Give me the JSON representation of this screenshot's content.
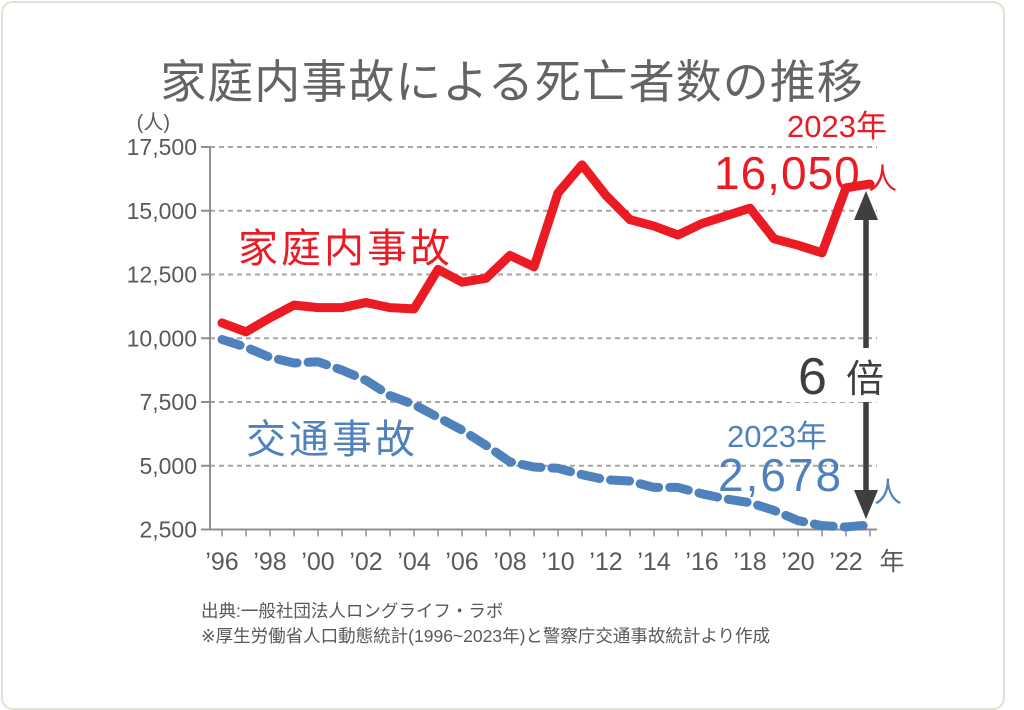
{
  "title": "家庭内事故による死亡者数の推移",
  "source": {
    "line1": "出典:一般社団法人ロングライフ・ラボ",
    "line2": "※厚生労働省人口動態統計(1996~2023年)と警察庁交通事故統計より作成"
  },
  "chart_data": {
    "type": "line",
    "unit_label": "(人)",
    "years": [
      1996,
      1997,
      1998,
      1999,
      2000,
      2001,
      2002,
      2003,
      2004,
      2005,
      2006,
      2007,
      2008,
      2009,
      2010,
      2011,
      2012,
      2013,
      2014,
      2015,
      2016,
      2017,
      2018,
      2019,
      2020,
      2021,
      2022,
      2023
    ],
    "x_axis": {
      "label_years": [
        "’96",
        "’98",
        "’00",
        "’02",
        "’04",
        "’06",
        "’08",
        "’10",
        "’12",
        "’14",
        "’16",
        "’18",
        "’20",
        "’22"
      ],
      "suffix": "年"
    },
    "y_axis": {
      "min": 2500,
      "max": 17500,
      "step": 2500,
      "tick_labels": [
        "2,500",
        "5,000",
        "7,500",
        "10,000",
        "12,500",
        "15,000",
        "17,500"
      ]
    },
    "grid": "horizontal-dashed",
    "legend_position": "inline-labels",
    "series": [
      {
        "name": "家庭内事故",
        "color": "#ec1b23",
        "style": "solid",
        "values": [
          10600,
          10250,
          10800,
          11300,
          11200,
          11200,
          11400,
          11200,
          11150,
          12700,
          12200,
          12350,
          13250,
          12800,
          15700,
          16800,
          15600,
          14650,
          14400,
          14050,
          14500,
          14800,
          15100,
          13900,
          13650,
          13350,
          15900,
          16050
        ]
      },
      {
        "name": "交通事故",
        "color": "#4f81bd",
        "style": "dashed",
        "values": [
          9950,
          9650,
          9250,
          9030,
          9080,
          8750,
          8350,
          7750,
          7400,
          6900,
          6400,
          5800,
          5150,
          4950,
          4900,
          4650,
          4450,
          4400,
          4150,
          4150,
          3900,
          3700,
          3550,
          3250,
          2850,
          2650,
          2600,
          2678
        ]
      }
    ],
    "annotations": {
      "home": {
        "year_label": "2023年",
        "value_label": "16,050",
        "unit": "人"
      },
      "traffic": {
        "year_label": "2023年",
        "value_label": "2,678",
        "unit": "人"
      },
      "ratio": {
        "number": "6",
        "unit": "倍",
        "color": "#3f3f3f"
      }
    }
  }
}
